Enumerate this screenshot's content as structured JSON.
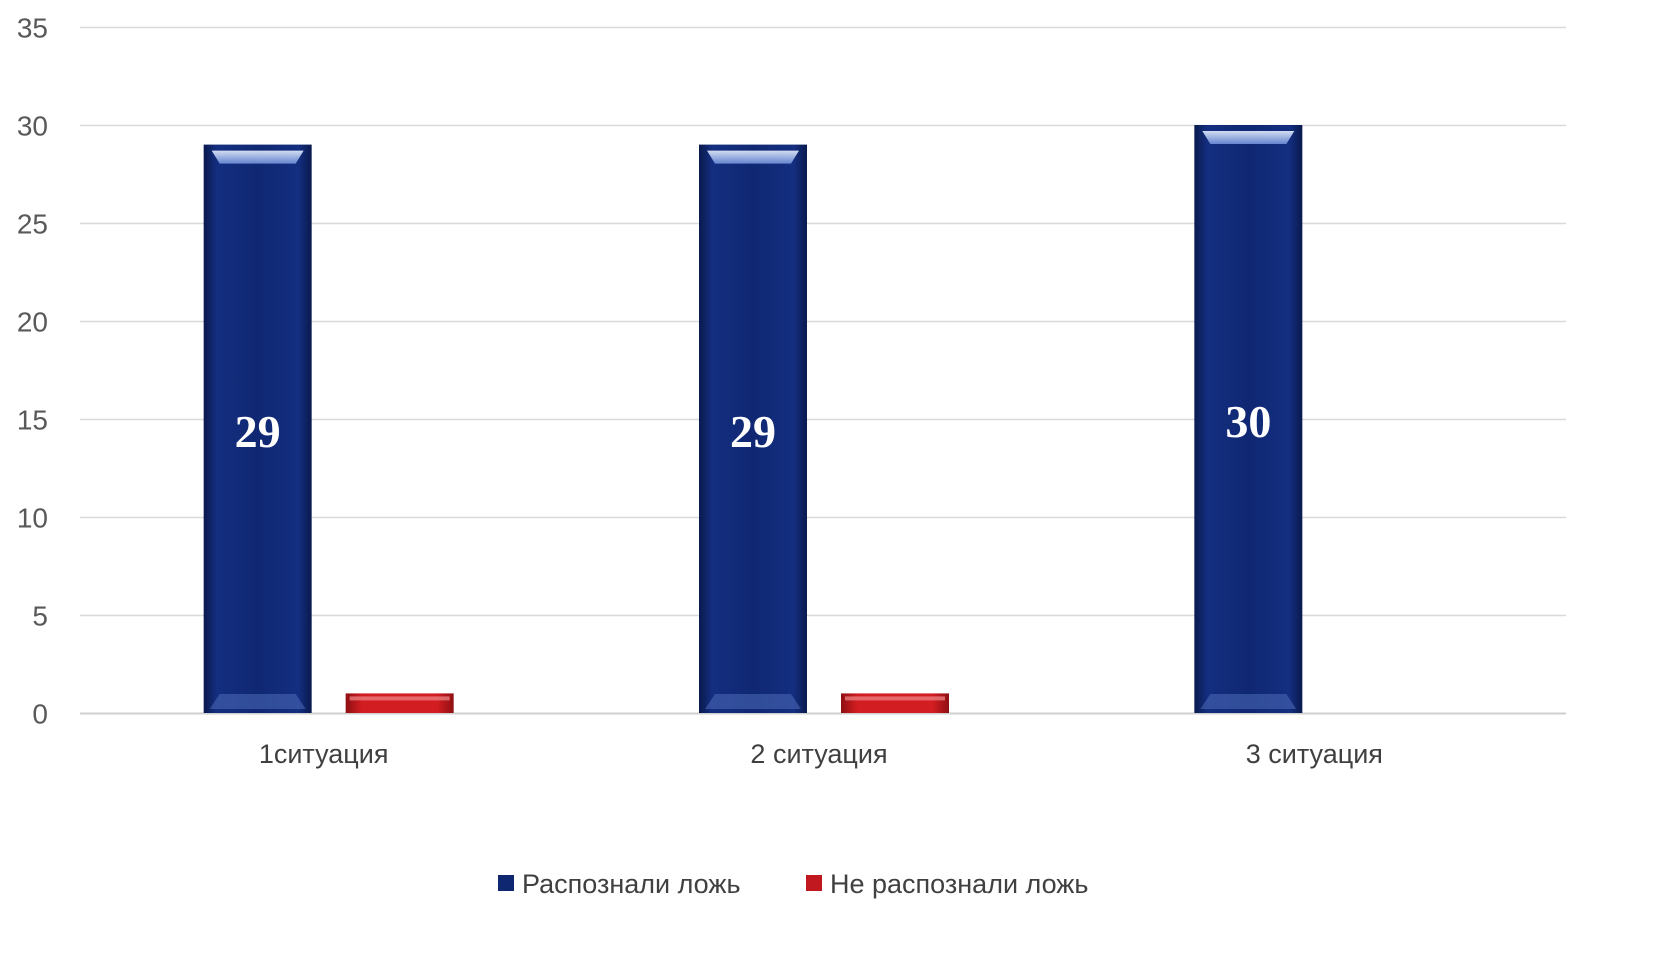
{
  "chart_data": {
    "type": "bar",
    "categories": [
      "1ситуация",
      "2 ситуация",
      "3 ситуация"
    ],
    "series": [
      {
        "name": "Распознали ложь",
        "values": [
          29,
          29,
          30
        ],
        "color": "#0f2670",
        "show_labels": true
      },
      {
        "name": "Не распознали ложь",
        "values": [
          1,
          1,
          0
        ],
        "color": "#c0181e",
        "show_labels": false
      }
    ],
    "ylim": [
      0,
      35
    ],
    "yticks": [
      0,
      5,
      10,
      15,
      20,
      25,
      30,
      35
    ],
    "grid": true,
    "legend_position": "bottom",
    "title": "",
    "xlabel": "",
    "ylabel": ""
  }
}
